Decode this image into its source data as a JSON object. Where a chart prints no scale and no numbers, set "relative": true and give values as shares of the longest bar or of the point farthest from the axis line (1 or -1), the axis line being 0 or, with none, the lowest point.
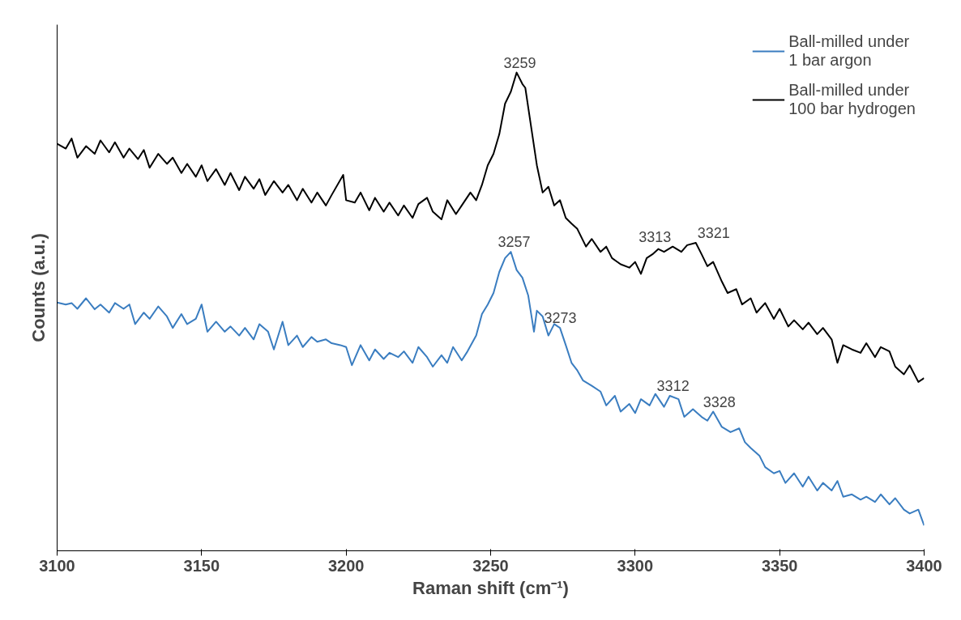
{
  "chart_data": {
    "type": "line",
    "relative": true,
    "xlabel": "Raman shift (cm⁻¹)",
    "ylabel": "Counts (a.u.)",
    "xlim": [
      3100,
      3400
    ],
    "xticks": [
      3100,
      3150,
      3200,
      3250,
      3300,
      3350,
      3400
    ],
    "tick_labels": "x",
    "grid": false,
    "legend": "top right",
    "marker": "none",
    "line_style": "solid",
    "series": [
      {
        "name": "Ball-milled under 1 bar argon",
        "color": "#3a7dc0",
        "x": [
          3100,
          3103,
          3105,
          3107,
          3110,
          3113,
          3115,
          3118,
          3120,
          3123,
          3125,
          3127,
          3130,
          3132,
          3135,
          3138,
          3140,
          3143,
          3145,
          3148,
          3150,
          3152,
          3155,
          3158,
          3160,
          3163,
          3165,
          3168,
          3170,
          3173,
          3175,
          3178,
          3180,
          3183,
          3185,
          3188,
          3190,
          3193,
          3195,
          3198,
          3200,
          3202,
          3205,
          3208,
          3210,
          3213,
          3215,
          3218,
          3220,
          3223,
          3225,
          3228,
          3230,
          3233,
          3235,
          3237,
          3240,
          3242,
          3245,
          3247,
          3249,
          3251,
          3253,
          3255,
          3257,
          3259,
          3261,
          3263,
          3265,
          3266,
          3268,
          3270,
          3272,
          3274,
          3276,
          3278,
          3280,
          3282,
          3285,
          3288,
          3290,
          3293,
          3295,
          3298,
          3300,
          3302,
          3305,
          3307,
          3310,
          3312,
          3315,
          3317,
          3320,
          3323,
          3325,
          3327,
          3330,
          3333,
          3336,
          3338,
          3340,
          3343,
          3345,
          3348,
          3350,
          3352,
          3355,
          3358,
          3360,
          3363,
          3365,
          3368,
          3370,
          3372,
          3375,
          3378,
          3380,
          3383,
          3385,
          3388,
          3390,
          3393,
          3395,
          3398,
          3400
        ],
        "values": [
          0.519,
          0.515,
          0.518,
          0.506,
          0.528,
          0.505,
          0.515,
          0.498,
          0.518,
          0.506,
          0.515,
          0.474,
          0.498,
          0.485,
          0.511,
          0.49,
          0.466,
          0.495,
          0.474,
          0.485,
          0.515,
          0.458,
          0.479,
          0.458,
          0.469,
          0.45,
          0.466,
          0.442,
          0.474,
          0.458,
          0.421,
          0.479,
          0.43,
          0.45,
          0.426,
          0.447,
          0.437,
          0.442,
          0.434,
          0.43,
          0.426,
          0.388,
          0.43,
          0.398,
          0.421,
          0.401,
          0.414,
          0.405,
          0.417,
          0.393,
          0.426,
          0.405,
          0.385,
          0.409,
          0.393,
          0.426,
          0.398,
          0.417,
          0.45,
          0.495,
          0.515,
          0.539,
          0.583,
          0.612,
          0.625,
          0.587,
          0.571,
          0.534,
          0.458,
          0.502,
          0.49,
          0.45,
          0.474,
          0.466,
          0.43,
          0.393,
          0.377,
          0.356,
          0.345,
          0.333,
          0.304,
          0.324,
          0.291,
          0.307,
          0.288,
          0.317,
          0.304,
          0.328,
          0.301,
          0.324,
          0.317,
          0.28,
          0.296,
          0.28,
          0.272,
          0.291,
          0.259,
          0.248,
          0.256,
          0.227,
          0.215,
          0.199,
          0.175,
          0.162,
          0.167,
          0.142,
          0.162,
          0.134,
          0.155,
          0.126,
          0.142,
          0.126,
          0.146,
          0.113,
          0.118,
          0.107,
          0.113,
          0.102,
          0.118,
          0.097,
          0.11,
          0.086,
          0.078,
          0.086,
          0.053
        ]
      },
      {
        "name": "Ball-milled under 100 bar hydrogen",
        "color": "#000000",
        "x": [
          3100,
          3103,
          3105,
          3107,
          3110,
          3113,
          3115,
          3118,
          3120,
          3123,
          3125,
          3128,
          3130,
          3132,
          3135,
          3138,
          3140,
          3143,
          3145,
          3148,
          3150,
          3152,
          3155,
          3158,
          3160,
          3163,
          3165,
          3168,
          3170,
          3172,
          3175,
          3178,
          3180,
          3183,
          3185,
          3188,
          3190,
          3193,
          3195,
          3199,
          3200,
          3203,
          3205,
          3208,
          3210,
          3213,
          3215,
          3218,
          3220,
          3223,
          3225,
          3228,
          3230,
          3233,
          3235,
          3238,
          3240,
          3243,
          3245,
          3247,
          3249,
          3251,
          3253,
          3255,
          3257,
          3259,
          3261,
          3262,
          3264,
          3266,
          3268,
          3270,
          3272,
          3274,
          3276,
          3278,
          3280,
          3283,
          3285,
          3288,
          3290,
          3292,
          3295,
          3298,
          3300,
          3302,
          3304,
          3306,
          3308,
          3310,
          3313,
          3316,
          3318,
          3321,
          3323,
          3325,
          3327,
          3330,
          3332,
          3335,
          3337,
          3340,
          3342,
          3345,
          3348,
          3350,
          3353,
          3355,
          3358,
          3360,
          3363,
          3365,
          3368,
          3370,
          3372,
          3375,
          3378,
          3380,
          3383,
          3385,
          3388,
          3390,
          3393,
          3395,
          3398,
          3400
        ],
        "values": [
          0.851,
          0.841,
          0.862,
          0.822,
          0.846,
          0.83,
          0.858,
          0.833,
          0.854,
          0.822,
          0.841,
          0.819,
          0.838,
          0.801,
          0.83,
          0.809,
          0.822,
          0.79,
          0.809,
          0.782,
          0.806,
          0.773,
          0.798,
          0.765,
          0.79,
          0.754,
          0.782,
          0.757,
          0.777,
          0.744,
          0.773,
          0.749,
          0.765,
          0.733,
          0.757,
          0.728,
          0.749,
          0.722,
          0.744,
          0.786,
          0.733,
          0.728,
          0.749,
          0.712,
          0.738,
          0.709,
          0.728,
          0.701,
          0.722,
          0.696,
          0.725,
          0.738,
          0.709,
          0.693,
          0.733,
          0.704,
          0.722,
          0.749,
          0.733,
          0.765,
          0.806,
          0.83,
          0.871,
          0.935,
          0.96,
          1,
          0.976,
          0.968,
          0.887,
          0.806,
          0.749,
          0.761,
          0.722,
          0.733,
          0.696,
          0.684,
          0.673,
          0.636,
          0.652,
          0.625,
          0.636,
          0.612,
          0.599,
          0.592,
          0.604,
          0.579,
          0.612,
          0.62,
          0.631,
          0.625,
          0.636,
          0.625,
          0.639,
          0.644,
          0.62,
          0.595,
          0.604,
          0.563,
          0.539,
          0.547,
          0.515,
          0.528,
          0.498,
          0.518,
          0.485,
          0.506,
          0.469,
          0.482,
          0.463,
          0.477,
          0.453,
          0.466,
          0.442,
          0.393,
          0.43,
          0.421,
          0.414,
          0.434,
          0.405,
          0.426,
          0.417,
          0.385,
          0.369,
          0.388,
          0.353,
          0.361
        ]
      }
    ],
    "annotations": [
      {
        "text": "3259",
        "x": 3259,
        "y": 1
      },
      {
        "text": "3313",
        "x": 3313,
        "y": 0.636
      },
      {
        "text": "3321",
        "x": 3321,
        "y": 0.644
      },
      {
        "text": "3257",
        "x": 3257,
        "y": 0.625
      },
      {
        "text": "3273",
        "x": 3273,
        "y": 0.466
      },
      {
        "text": "3312",
        "x": 3312,
        "y": 0.324
      },
      {
        "text": "3328",
        "x": 3328,
        "y": 0.291
      }
    ]
  }
}
